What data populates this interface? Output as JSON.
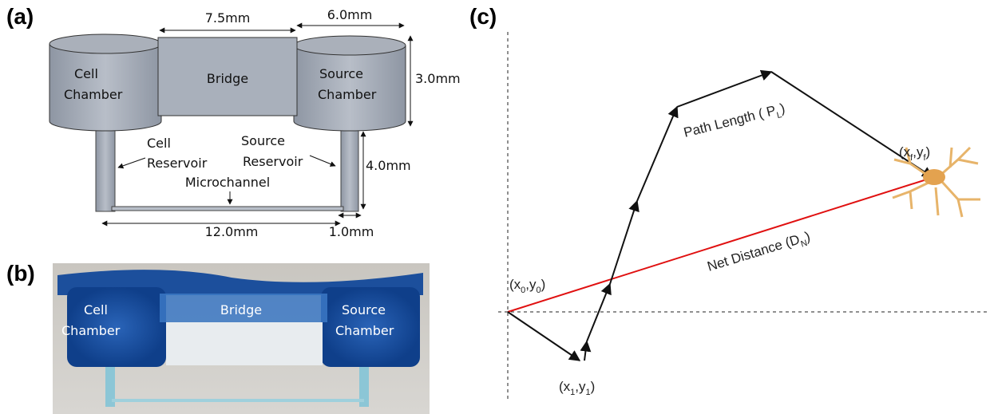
{
  "panel_a": {
    "label": "(a)",
    "dim_bridge_width": "7.5mm",
    "dim_chamber_width": "6.0mm",
    "dim_chamber_height": "3.0mm",
    "dim_reservoir_height": "4.0mm",
    "dim_channel_length": "12.0mm",
    "dim_reservoir_width": "1.0mm",
    "cell_chamber": [
      "Cell",
      "Chamber"
    ],
    "bridge": "Bridge",
    "source_chamber": [
      "Source",
      "Chamber"
    ],
    "cell_reservoir": [
      "Cell",
      "Reservoir"
    ],
    "source_reservoir": [
      "Source",
      "Reservoir"
    ],
    "microchannel": "Microchannel"
  },
  "panel_b": {
    "label": "(b)",
    "cell_chamber": [
      "Cell",
      "Chamber"
    ],
    "bridge": "Bridge",
    "source_chamber": [
      "Source",
      "Chamber"
    ]
  },
  "panel_c": {
    "label": "(c)",
    "start_point": [
      "(x",
      "0",
      ",y",
      "0",
      ")"
    ],
    "first_point": [
      "(x",
      "1",
      ",y",
      "1",
      ")"
    ],
    "final_point": [
      "(x",
      "f",
      ",y",
      "f",
      ")"
    ],
    "path_length": [
      "Path Length ( P",
      "L",
      ")"
    ],
    "net_distance": [
      "Net Distance (D",
      "N",
      ")"
    ]
  }
}
